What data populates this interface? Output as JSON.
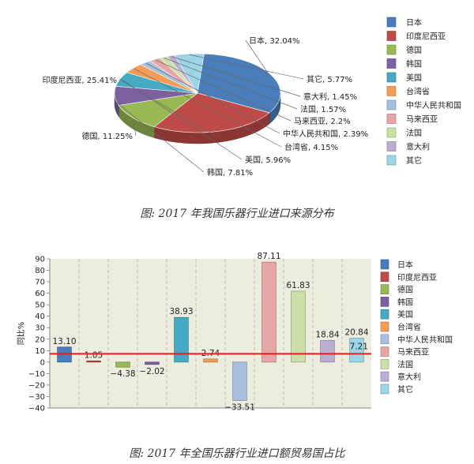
{
  "pie_caption": "图: 2017 年我国乐器行业进口来源分布",
  "bar_caption": "图: 2017 年全国乐器行业进口额贸易国占比",
  "chart_data": [
    {
      "type": "pie",
      "slices": [
        {
          "name": "日本",
          "label": "日本, 32.04%",
          "value": 32.04,
          "color": "#4a7ebb"
        },
        {
          "name": "印度尼西亚",
          "label": "印度尼西亚, 25.41%",
          "value": 25.41,
          "color": "#be4b48"
        },
        {
          "name": "德国",
          "label": "德国, 11.25%",
          "value": 11.25,
          "color": "#98b954"
        },
        {
          "name": "韩国",
          "label": "韩国, 7.81%",
          "value": 7.81,
          "color": "#7d60a0"
        },
        {
          "name": "美国",
          "label": "美国, 5.96%",
          "value": 5.96,
          "color": "#46aac5"
        },
        {
          "name": "台湾省",
          "label": "台湾省, 4.15%",
          "value": 4.15,
          "color": "#f59d56"
        },
        {
          "name": "中华人民共和国",
          "label": "中华人民共和国, 2.39%",
          "value": 2.39,
          "color": "#a8c0de"
        },
        {
          "name": "马来西亚",
          "label": "马来西亚, 2.2%",
          "value": 2.2,
          "color": "#e6a6a5"
        },
        {
          "name": "法国",
          "label": "法国, 1.57%",
          "value": 1.57,
          "color": "#cddfa8"
        },
        {
          "name": "意大利",
          "label": "意大利, 1.45%",
          "value": 1.45,
          "color": "#bcaed3"
        },
        {
          "name": "其它",
          "label": "其它, 5.77%",
          "value": 5.77,
          "color": "#9bd5e6"
        }
      ],
      "legend": [
        "日本",
        "印度尼西亚",
        "德国",
        "韩国",
        "美国",
        "台湾省",
        "中华人民共和国",
        "马来西亚",
        "法国",
        "意大利",
        "其它"
      ],
      "legend_position": "right"
    },
    {
      "type": "bar",
      "categories": [
        "日本",
        "印度尼西亚",
        "德国",
        "韩国",
        "美国",
        "台湾省",
        "中华人民共和国",
        "马来西亚",
        "法国",
        "意大利",
        "其它"
      ],
      "values": [
        13.1,
        1.05,
        -4.38,
        -2.02,
        38.93,
        2.74,
        -33.51,
        87.11,
        61.83,
        18.84,
        20.84
      ],
      "value_labels": [
        "13.10",
        "1.05",
        "-4.38",
        "-2.02",
        "38.93",
        "2.74",
        "-33.51",
        "87.11",
        "61.83",
        "18.84",
        "20.84"
      ],
      "colors": [
        "#4a7ebb",
        "#be4b48",
        "#98b954",
        "#7d60a0",
        "#46aac5",
        "#f59d56",
        "#a8c0de",
        "#e6a6a5",
        "#cddfa8",
        "#bcaed3",
        "#9bd5e6"
      ],
      "ylabel": "同比%",
      "ylim": [
        -40,
        90
      ],
      "yticks": [
        -40,
        -30,
        -20,
        -10,
        0,
        10,
        20,
        30,
        40,
        50,
        60,
        70,
        80,
        90
      ],
      "reference_line": {
        "value": 7.21,
        "label": "7.21",
        "color": "#e02020"
      },
      "grid": true,
      "background": "#ededdf",
      "legend": [
        "日本",
        "印度尼西亚",
        "德国",
        "韩国",
        "美国",
        "台湾省",
        "中华人民共和国",
        "马来西亚",
        "法国",
        "意大利",
        "其它"
      ],
      "legend_position": "right"
    }
  ]
}
